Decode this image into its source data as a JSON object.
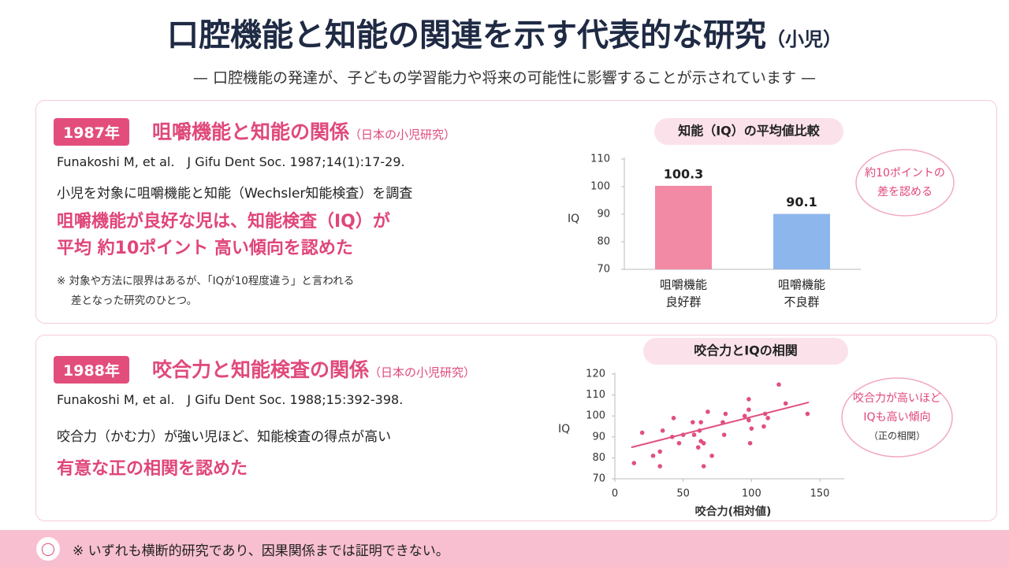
{
  "header": {
    "title": "口腔機能と知能の関連を示す代表的な研究",
    "title_suffix": "（小児）",
    "subtitle": "— 口腔機能の発達が、子どもの学習能力や将来の可能性に影響することが示されています —"
  },
  "sections": [
    {
      "year": "1987年",
      "title": "咀嚼機能と知能の関係",
      "title_note": "（日本の小児研究）",
      "citation": "Funakoshi M, et al.　J Gifu Dent Soc. 1987;14(1):17-29.",
      "summary": "小児を対象に咀嚼機能と知能（Wechsler知能検査）を調査",
      "finding": [
        "咀嚼機能が良好な児は、知能検査（IQ）が",
        "平均 約10ポイント 高い傾向を認めた"
      ],
      "note": [
        "※ 対象や方法に限界はあるが、「IQが10程度違う」と言われる",
        "差となった研究のひとつ。"
      ]
    },
    {
      "year": "1988年",
      "title": "咬合力と知能検査の関係",
      "title_note": "（日本の小児研究）",
      "citation": "Funakoshi M, et al.　J Gifu Dent Soc. 1988;15:392-398.",
      "summary": "咬合力（かむ力）が強い児ほど、知能検査の得点が高い",
      "finding": [
        "有意な正の相関を認めた"
      ]
    }
  ],
  "chart_data": [
    {
      "type": "bar",
      "title": "知能（IQ）の平均値比較",
      "y_label": "IQ",
      "categories": [
        [
          "咀嚼機能",
          "良好群"
        ],
        [
          "咀嚼機能",
          "不良群"
        ]
      ],
      "values": [
        100.3,
        90.1
      ],
      "colors": [
        "#f28aa5",
        "#8db6ec"
      ],
      "ylim": [
        70,
        110
      ],
      "yticks": [
        70,
        80,
        90,
        100,
        110
      ],
      "annotation": [
        "約10ポイントの",
        "差を認める"
      ]
    },
    {
      "type": "scatter",
      "title": "咬合力とIQの相関",
      "x_label": "咬合力(相対値)",
      "y_label": "IQ",
      "color": "#e0507f",
      "x": [
        14,
        20,
        28,
        33,
        35,
        33,
        43,
        42,
        47,
        50,
        57,
        58,
        61,
        62,
        63,
        63,
        65,
        65,
        68,
        71,
        79,
        80,
        81,
        95,
        98,
        98,
        98,
        99,
        100,
        109,
        112,
        120,
        125,
        141,
        110
      ],
      "y": [
        77.5,
        92,
        81,
        83,
        93,
        76,
        99,
        90,
        87,
        91,
        97,
        91,
        85,
        93,
        97,
        88,
        87,
        76,
        102,
        81,
        97,
        91,
        101,
        100,
        108,
        103,
        98,
        87,
        94,
        95,
        99,
        115,
        106,
        101,
        101
      ],
      "trend": {
        "x": [
          12,
          142
        ],
        "y": [
          85,
          106.5
        ]
      },
      "xlim": [
        0,
        168
      ],
      "xticks": [
        0,
        50,
        100,
        150
      ],
      "ylim": [
        70,
        120
      ],
      "yticks": [
        70,
        80,
        90,
        100,
        110,
        120
      ],
      "annotation": [
        "咬合力が高いほど",
        "IQも高い傾向",
        "（正の相関）"
      ]
    }
  ],
  "footer": "※ いずれも横断的研究であり、因果関係までは証明できない。"
}
